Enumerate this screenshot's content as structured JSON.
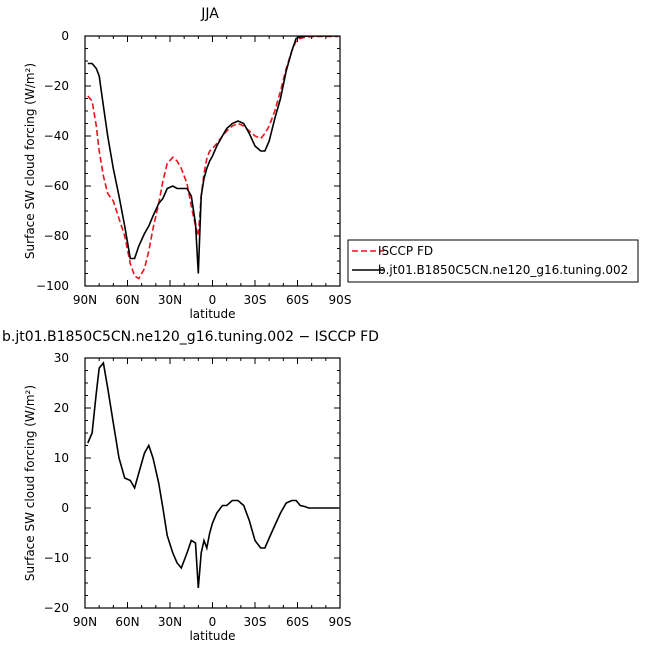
{
  "chart_data": [
    {
      "type": "line",
      "title": "JJA",
      "xlabel": "latitude",
      "ylabel": "Surface SW cloud forcing (W/m²)",
      "xlim": [
        90,
        -90
      ],
      "ylim": [
        -100,
        0
      ],
      "xticks": [
        {
          "value": 90,
          "label": "90N"
        },
        {
          "value": 60,
          "label": "60N"
        },
        {
          "value": 30,
          "label": "30N"
        },
        {
          "value": 0,
          "label": "0"
        },
        {
          "value": -30,
          "label": "30S"
        },
        {
          "value": -60,
          "label": "60S"
        },
        {
          "value": -90,
          "label": "90S"
        }
      ],
      "yticks": [
        {
          "value": 0,
          "label": "0"
        },
        {
          "value": -20,
          "label": "−20"
        },
        {
          "value": -40,
          "label": "−40"
        },
        {
          "value": -60,
          "label": "−60"
        },
        {
          "value": -80,
          "label": "−80"
        },
        {
          "value": -100,
          "label": "−100"
        }
      ],
      "legend_placement": "right",
      "series": [
        {
          "name": "ISCCP FD",
          "color": "#e8141c",
          "dash": "dashed",
          "x": [
            88,
            85,
            82,
            80,
            77,
            74,
            70,
            66,
            62,
            58,
            55,
            52,
            48,
            45,
            42,
            38,
            35,
            32,
            28,
            25,
            22,
            18,
            15,
            12,
            10,
            8,
            6,
            4,
            2,
            0,
            -3,
            -7,
            -10,
            -14,
            -18,
            -22,
            -26,
            -30,
            -34,
            -37,
            -40,
            -44,
            -48,
            -52,
            -56,
            -59,
            -62,
            -65,
            -68,
            -72,
            -76,
            -80,
            -85,
            -89
          ],
          "y": [
            -24,
            -26,
            -36,
            -46,
            -56,
            -63,
            -66,
            -73,
            -80,
            -91,
            -96,
            -97,
            -93,
            -86,
            -77,
            -67,
            -58,
            -51,
            -48.5,
            -50,
            -53,
            -59,
            -68,
            -76,
            -80,
            -64,
            -55,
            -49,
            -46,
            -45,
            -43,
            -40,
            -38,
            -36,
            -35,
            -36,
            -38,
            -40,
            -41,
            -39,
            -36,
            -30,
            -22,
            -13,
            -6,
            -2,
            -1,
            -0.5,
            -0.3,
            -0.2,
            -0.2,
            -0.2,
            -0.2,
            -0.2
          ]
        },
        {
          "name": "b.jt01.B1850C5CN.ne120_g16.tuning.002",
          "color": "#000000",
          "dash": "solid",
          "x": [
            88,
            85,
            82,
            80,
            77,
            74,
            70,
            66,
            62,
            58,
            55,
            52,
            48,
            45,
            42,
            38,
            35,
            32,
            28,
            25,
            22,
            18,
            15,
            12,
            10,
            8,
            6,
            4,
            2,
            0,
            -3,
            -7,
            -10,
            -14,
            -18,
            -22,
            -26,
            -30,
            -34,
            -37,
            -40,
            -44,
            -48,
            -52,
            -56,
            -59,
            -62,
            -65,
            -68,
            -72,
            -76,
            -80,
            -85,
            -89
          ],
          "y": [
            -11,
            -11,
            -13,
            -16,
            -28,
            -40,
            -53,
            -64,
            -76,
            -89,
            -89,
            -84,
            -79,
            -76,
            -72,
            -67,
            -65,
            -61,
            -60,
            -61,
            -61,
            -61,
            -64,
            -75,
            -95,
            -64,
            -57,
            -53,
            -50,
            -48,
            -44,
            -40,
            -37,
            -35,
            -34,
            -35,
            -39,
            -44,
            -46,
            -46,
            -42,
            -33,
            -25,
            -14,
            -6,
            -1,
            -0.3,
            -0.1,
            0,
            0,
            0,
            0,
            0,
            0
          ]
        }
      ]
    },
    {
      "type": "line",
      "title": "b.jt01.B1850C5CN.ne120_g16.tuning.002 − ISCCP FD",
      "xlabel": "latitude",
      "ylabel": "Surface SW cloud forcing (W/m²)",
      "xlim": [
        90,
        -90
      ],
      "ylim": [
        -20,
        30
      ],
      "xticks": [
        {
          "value": 90,
          "label": "90N"
        },
        {
          "value": 60,
          "label": "60N"
        },
        {
          "value": 30,
          "label": "30N"
        },
        {
          "value": 0,
          "label": "0"
        },
        {
          "value": -30,
          "label": "30S"
        },
        {
          "value": -60,
          "label": "60S"
        },
        {
          "value": -90,
          "label": "90S"
        }
      ],
      "yticks": [
        {
          "value": 30,
          "label": "30"
        },
        {
          "value": 20,
          "label": "20"
        },
        {
          "value": 10,
          "label": "10"
        },
        {
          "value": 0,
          "label": "0"
        },
        {
          "value": -10,
          "label": "−10"
        },
        {
          "value": -20,
          "label": "−20"
        }
      ],
      "series": [
        {
          "name": "",
          "color": "#000000",
          "dash": "solid",
          "x": [
            88,
            85,
            82,
            80,
            77,
            74,
            70,
            66,
            62,
            58,
            55,
            52,
            48,
            45,
            42,
            38,
            35,
            32,
            28,
            25,
            22,
            18,
            15,
            12,
            10,
            8,
            6,
            4,
            2,
            0,
            -3,
            -7,
            -10,
            -14,
            -18,
            -22,
            -26,
            -30,
            -34,
            -37,
            -40,
            -44,
            -48,
            -52,
            -56,
            -59,
            -62,
            -65,
            -68,
            -72,
            -76,
            -80,
            -85,
            -89
          ],
          "y": [
            13,
            15,
            23,
            28,
            29,
            24,
            17,
            10,
            6,
            5.5,
            4,
            7,
            11,
            12.5,
            10,
            5,
            0,
            -5.5,
            -9,
            -11,
            -12,
            -9,
            -6.5,
            -7,
            -16,
            -9,
            -6.5,
            -8,
            -5,
            -3,
            -1,
            0.5,
            0.5,
            1.5,
            1.5,
            0.5,
            -2.5,
            -6.5,
            -8,
            -8,
            -6,
            -3.5,
            -1,
            1,
            1.5,
            1.5,
            0.5,
            0.3,
            0,
            0,
            0,
            0,
            0,
            0
          ]
        }
      ]
    }
  ]
}
